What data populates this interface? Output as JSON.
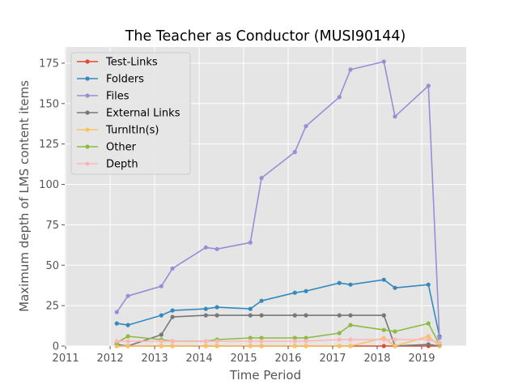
{
  "chart_data": {
    "type": "line",
    "title": "The Teacher as Conductor (MUSI90144)",
    "xlabel": "Time Period",
    "ylabel": "Maximum depth of LMS content items",
    "xlim": [
      2011,
      2012.0
    ],
    "ylim": [
      0,
      185
    ],
    "x_ticks": [
      "2011",
      "2012",
      "2013",
      "2014",
      "2015",
      "2016",
      "2017",
      "2018",
      "2019"
    ],
    "y_ticks": [
      "0",
      "25",
      "50",
      "75",
      "100",
      "125",
      "150",
      "175"
    ],
    "grid": true,
    "legend_position": "upper-left",
    "x": [
      2012.15,
      2012.4,
      2013.15,
      2013.4,
      2014.15,
      2014.4,
      2015.15,
      2015.4,
      2016.15,
      2016.4,
      2017.15,
      2017.4,
      2018.15,
      2018.4,
      2019.15,
      2019.4
    ],
    "series": [
      {
        "name": "Test-Links",
        "color": "#E24A33",
        "values": [
          0,
          0,
          0,
          0,
          0,
          0,
          0,
          0,
          0,
          0,
          0,
          0,
          0,
          0,
          0,
          0
        ]
      },
      {
        "name": "Folders",
        "color": "#348ABD",
        "values": [
          14,
          13,
          19,
          22,
          23,
          24,
          23,
          28,
          33,
          34,
          39,
          38,
          41,
          36,
          38,
          6
        ]
      },
      {
        "name": "Files",
        "color": "#988ED5",
        "values": [
          21,
          31,
          37,
          48,
          61,
          60,
          64,
          104,
          120,
          136,
          154,
          171,
          176,
          142,
          161,
          5
        ]
      },
      {
        "name": "External Links",
        "color": "#777777",
        "values": [
          1,
          0,
          7,
          18,
          19,
          19,
          19,
          19,
          19,
          19,
          19,
          19,
          19,
          0,
          1,
          0
        ]
      },
      {
        "name": "TurnItIn(s)",
        "color": "#FBC15E",
        "values": [
          0,
          0,
          0,
          0,
          0,
          0,
          0,
          0,
          0,
          0,
          0,
          0,
          5,
          0,
          6,
          0
        ]
      },
      {
        "name": "Other",
        "color": "#8EBA42",
        "values": [
          2,
          6,
          4,
          3,
          3,
          4,
          5,
          5,
          5,
          5,
          8,
          13,
          10,
          9,
          14,
          1
        ]
      },
      {
        "name": "Depth",
        "color": "#FFB5B8",
        "values": [
          3,
          3,
          3,
          3,
          3,
          3,
          3,
          3,
          3,
          3,
          4,
          4,
          4,
          4,
          4,
          2
        ]
      }
    ]
  }
}
